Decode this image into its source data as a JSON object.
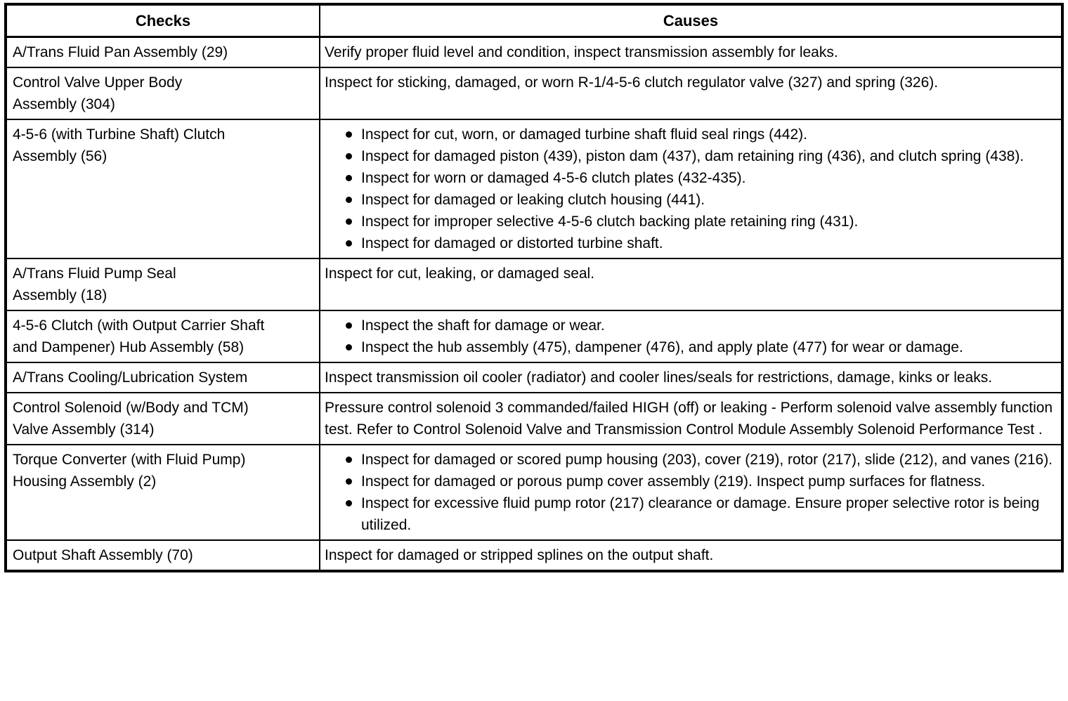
{
  "colors": {
    "text": "#000000",
    "border": "#000000",
    "background": "#ffffff"
  },
  "table": {
    "headers": {
      "checks": "Checks",
      "causes": "Causes"
    },
    "rows": [
      {
        "check": "A/Trans Fluid Pan Assembly (29)",
        "bulleted": false,
        "causes": [
          "Verify proper fluid level and condition, inspect transmission assembly for leaks."
        ]
      },
      {
        "check": "Control Valve Upper Body\nAssembly (304)",
        "bulleted": false,
        "causes": [
          "Inspect for sticking, damaged, or worn R-1/4-5-6 clutch regulator valve (327) and spring (326)."
        ]
      },
      {
        "check": "4-5-6 (with Turbine Shaft) Clutch\nAssembly (56)",
        "bulleted": true,
        "causes": [
          "Inspect for cut, worn, or damaged turbine shaft fluid seal rings (442).",
          "Inspect for damaged piston (439), piston dam (437), dam retaining ring (436), and clutch spring (438).",
          "Inspect for worn or damaged 4-5-6 clutch plates (432-435).",
          "Inspect for damaged or leaking clutch housing (441).",
          "Inspect for improper selective 4-5-6 clutch backing plate retaining ring (431).",
          "Inspect for damaged or distorted turbine shaft."
        ]
      },
      {
        "check": "A/Trans Fluid Pump Seal\nAssembly (18)",
        "bulleted": false,
        "causes": [
          "Inspect for cut, leaking, or damaged seal."
        ]
      },
      {
        "check": "4-5-6 Clutch (with Output Carrier Shaft\nand Dampener) Hub Assembly (58)",
        "bulleted": true,
        "causes": [
          "Inspect the shaft for damage or wear.",
          "Inspect the hub assembly (475), dampener (476), and apply plate (477) for wear or damage."
        ]
      },
      {
        "check": "A/Trans Cooling/Lubrication System",
        "bulleted": false,
        "causes": [
          "Inspect transmission oil cooler (radiator) and cooler lines/seals for restrictions, damage, kinks or leaks."
        ]
      },
      {
        "check": "Control Solenoid (w/Body and TCM)\nValve Assembly (314)",
        "bulleted": false,
        "causes": [
          "Pressure control solenoid 3 commanded/failed HIGH (off) or leaking - Perform solenoid valve assembly function test. Refer to Control Solenoid Valve and Transmission Control Module Assembly Solenoid Performance Test ."
        ]
      },
      {
        "check": "Torque Converter (with Fluid Pump)\nHousing Assembly (2)",
        "bulleted": true,
        "causes": [
          "Inspect for damaged or scored pump housing (203), cover (219), rotor (217), slide (212), and vanes (216).",
          "Inspect for damaged or porous pump cover assembly (219). Inspect pump surfaces for flatness.",
          "Inspect for excessive fluid pump rotor (217) clearance or damage. Ensure proper selective rotor is being utilized."
        ]
      },
      {
        "check": "Output Shaft Assembly (70)",
        "bulleted": false,
        "causes": [
          "Inspect for damaged or stripped splines on the output shaft."
        ]
      }
    ]
  }
}
